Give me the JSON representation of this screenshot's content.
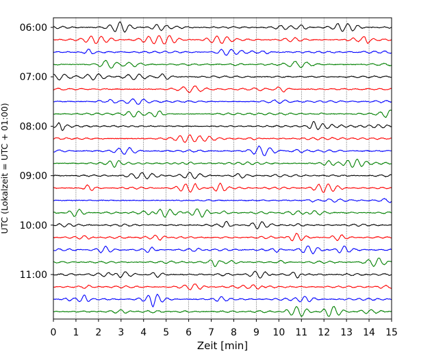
{
  "chart_data": {
    "type": "line",
    "title": "",
    "xlabel": "Zeit  [min]",
    "ylabel": "UTC (Lokalzeit = UTC + 01:00)",
    "xlim": [
      0,
      15
    ],
    "x_ticks": [
      0,
      1,
      2,
      3,
      4,
      5,
      6,
      7,
      8,
      9,
      10,
      11,
      12,
      13,
      14,
      15
    ],
    "y_ticks": [
      "06:00",
      "07:00",
      "08:00",
      "09:00",
      "10:00",
      "11:00"
    ],
    "trace_interval_min": 15,
    "trace_count": 24,
    "trace_start": "06:00",
    "trace_colors": [
      "#000000",
      "#ff0000",
      "#0000ff",
      "#008000"
    ],
    "grid": true,
    "legend": "none"
  }
}
